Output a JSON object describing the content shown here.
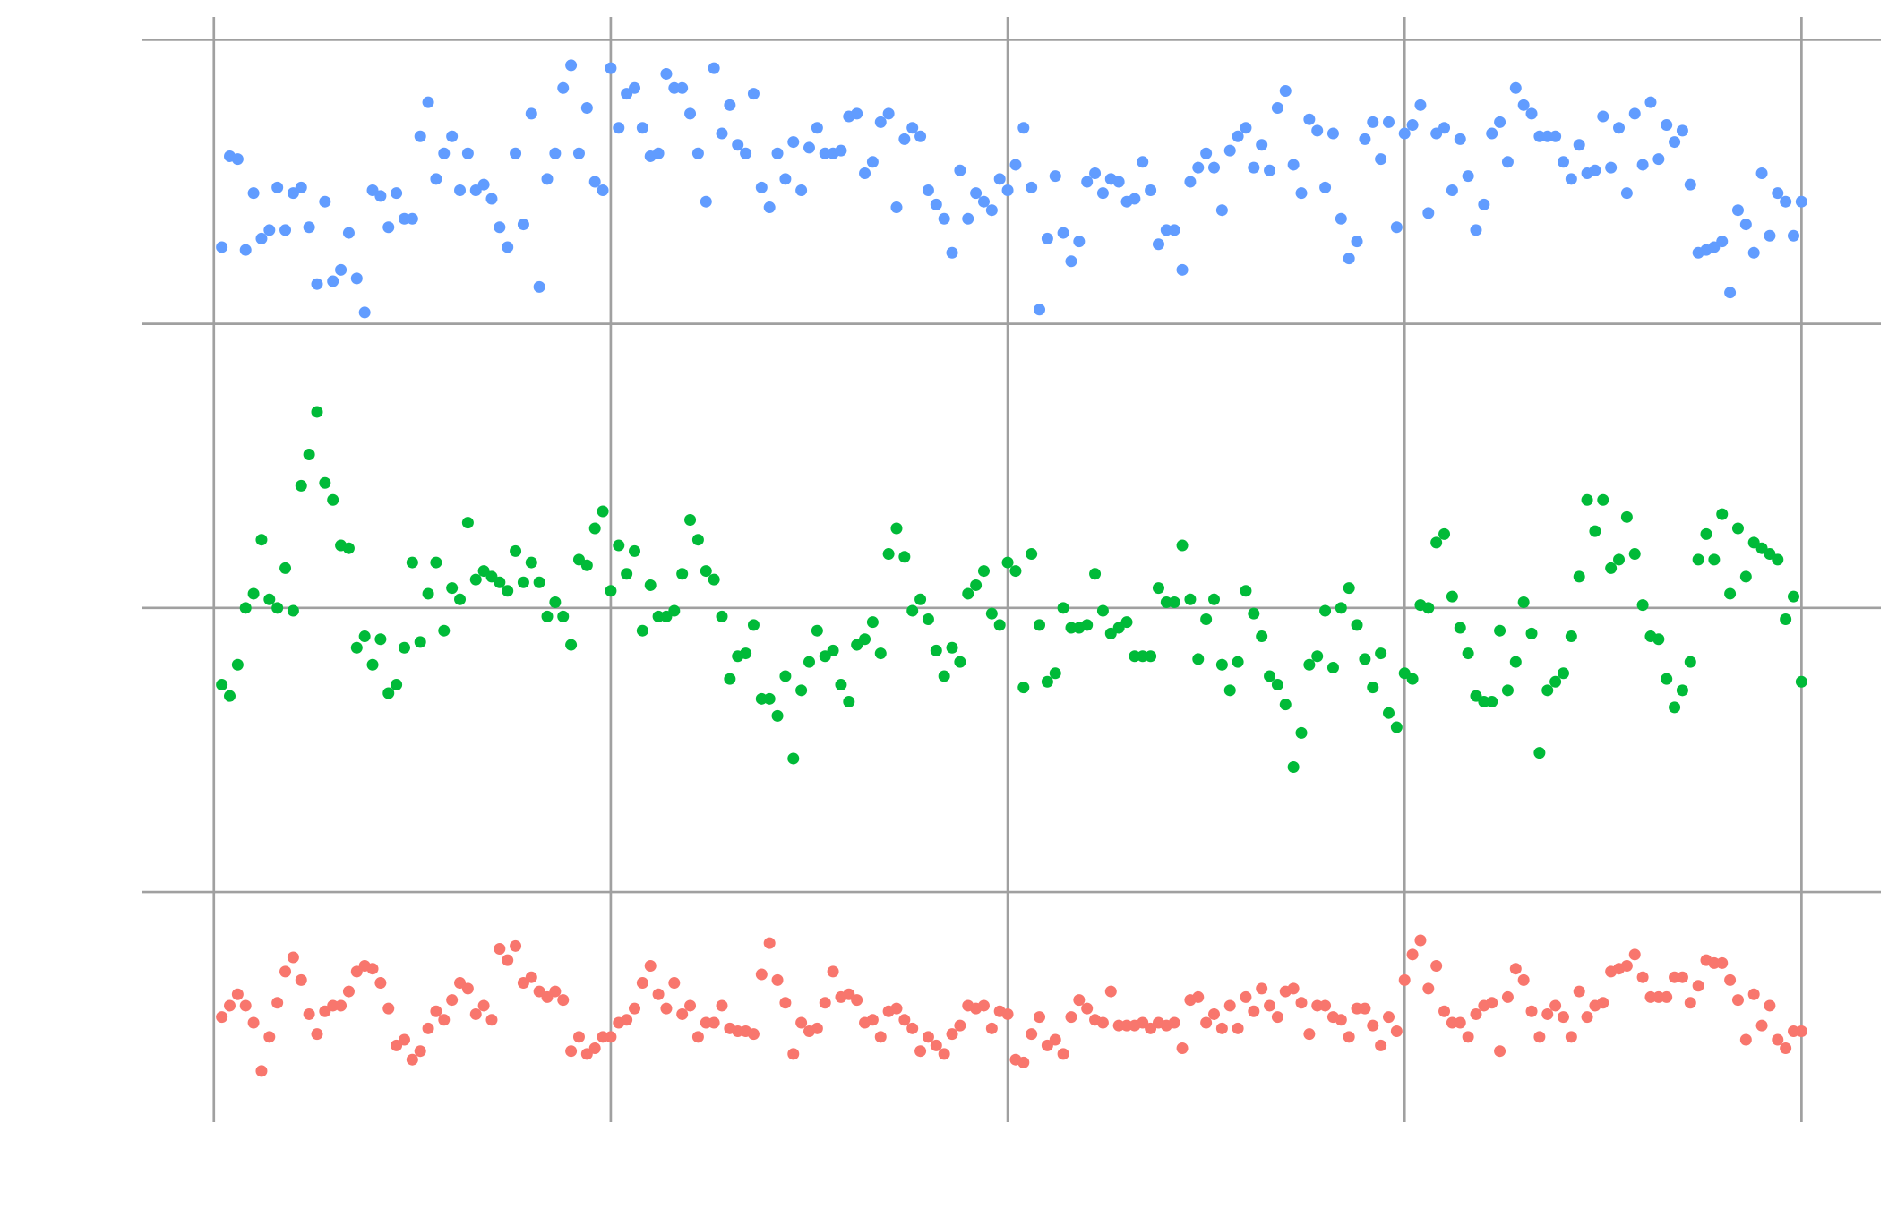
{
  "chart_data": {
    "type": "scatter",
    "x": [
      1,
      2,
      3,
      4,
      5,
      6,
      7,
      8,
      9,
      10,
      11,
      12,
      13,
      14,
      15,
      16,
      17,
      18,
      19,
      20,
      21,
      22,
      23,
      24,
      25,
      26,
      27,
      28,
      29,
      30,
      31,
      32,
      33,
      34,
      35,
      36,
      37,
      38,
      39,
      40,
      41,
      42,
      43,
      44,
      45,
      46,
      47,
      48,
      49,
      50,
      51,
      52,
      53,
      54,
      55,
      56,
      57,
      58,
      59,
      60,
      61,
      62,
      63,
      64,
      65,
      66,
      67,
      68,
      69,
      70,
      71,
      72,
      73,
      74,
      75,
      76,
      77,
      78,
      79,
      80,
      81,
      82,
      83,
      84,
      85,
      86,
      87,
      88,
      89,
      90,
      91,
      92,
      93,
      94,
      95,
      96,
      97,
      98,
      99,
      100,
      101,
      102,
      103,
      104,
      105,
      106,
      107,
      108,
      109,
      110,
      111,
      112,
      113,
      114,
      115,
      116,
      117,
      118,
      119,
      120,
      121,
      122,
      123,
      124,
      125,
      126,
      127,
      128,
      129,
      130,
      131,
      132,
      133,
      134,
      135,
      136,
      137,
      138,
      139,
      140,
      141,
      142,
      143,
      144,
      145,
      146,
      147,
      148,
      149,
      150,
      151,
      152,
      153,
      154,
      155,
      156,
      157,
      158,
      159,
      160,
      161,
      162,
      163,
      164,
      165,
      166,
      167,
      168,
      169,
      170,
      171,
      172,
      173,
      174,
      175,
      176,
      177,
      178,
      179,
      180,
      181,
      182,
      183,
      184,
      185,
      186,
      187,
      188,
      189,
      190,
      191,
      192,
      193,
      194,
      195,
      196,
      197,
      198,
      199,
      200
    ],
    "series": [
      {
        "color": "#619CFF",
        "values": [
          2.27,
          2.59,
          2.58,
          2.26,
          2.46,
          2.3,
          2.33,
          2.48,
          2.33,
          2.46,
          2.48,
          2.34,
          2.14,
          2.43,
          2.15,
          2.19,
          2.32,
          2.16,
          2.04,
          2.47,
          2.45,
          2.34,
          2.46,
          2.37,
          2.37,
          2.66,
          2.78,
          2.51,
          2.6,
          2.66,
          2.47,
          2.6,
          2.47,
          2.49,
          2.44,
          2.34,
          2.27,
          2.6,
          2.35,
          2.74,
          2.13,
          2.51,
          2.6,
          2.83,
          2.91,
          2.6,
          2.76,
          2.5,
          2.47,
          2.9,
          2.69,
          2.81,
          2.83,
          2.69,
          2.59,
          2.6,
          2.88,
          2.83,
          2.83,
          2.74,
          2.6,
          2.43,
          2.9,
          2.67,
          2.77,
          2.63,
          2.6,
          2.81,
          2.48,
          2.41,
          2.6,
          2.51,
          2.64,
          2.47,
          2.62,
          2.69,
          2.6,
          2.6,
          2.61,
          2.73,
          2.74,
          2.53,
          2.57,
          2.71,
          2.74,
          2.41,
          2.65,
          2.69,
          2.66,
          2.47,
          2.42,
          2.37,
          2.25,
          2.54,
          2.37,
          2.46,
          2.43,
          2.4,
          2.51,
          2.47,
          2.56,
          2.69,
          2.48,
          2.05,
          2.3,
          2.52,
          2.32,
          2.22,
          2.29,
          2.5,
          2.53,
          2.46,
          2.51,
          2.5,
          2.43,
          2.44,
          2.57,
          2.47,
          2.28,
          2.33,
          2.33,
          2.19,
          2.5,
          2.55,
          2.6,
          2.55,
          2.4,
          2.61,
          2.66,
          2.69,
          2.55,
          2.63,
          2.54,
          2.76,
          2.82,
          2.56,
          2.46,
          2.72,
          2.68,
          2.48,
          2.67,
          2.37,
          2.23,
          2.29,
          2.65,
          2.71,
          2.58,
          2.71,
          2.34,
          2.67,
          2.7,
          2.77,
          2.39,
          2.67,
          2.69,
          2.47,
          2.65,
          2.52,
          2.33,
          2.42,
          2.67,
          2.71,
          2.57,
          2.83,
          2.77,
          2.74,
          2.66,
          2.66,
          2.66,
          2.57,
          2.51,
          2.63,
          2.53,
          2.54,
          2.73,
          2.55,
          2.69,
          2.46,
          2.74,
          2.56,
          2.78,
          2.58,
          2.7,
          2.64,
          2.68,
          2.49,
          2.25,
          2.26,
          2.27,
          2.29,
          2.11,
          2.4,
          2.35,
          2.25,
          2.53,
          2.31,
          2.46,
          2.43,
          2.31,
          2.43
        ]
      },
      {
        "color": "#00BA38",
        "values": [
          0.73,
          0.69,
          0.8,
          1.0,
          1.05,
          1.24,
          1.03,
          1.0,
          1.14,
          0.99,
          1.43,
          1.54,
          1.69,
          1.44,
          1.38,
          1.22,
          1.21,
          0.86,
          0.9,
          0.8,
          0.89,
          0.7,
          0.73,
          0.86,
          1.16,
          0.88,
          1.05,
          1.16,
          0.92,
          1.07,
          1.03,
          1.3,
          1.1,
          1.13,
          1.11,
          1.09,
          1.06,
          1.2,
          1.09,
          1.16,
          1.09,
          0.97,
          1.02,
          0.97,
          0.87,
          1.17,
          1.15,
          1.28,
          1.34,
          1.06,
          1.22,
          1.12,
          1.2,
          0.92,
          1.08,
          0.97,
          0.97,
          0.99,
          1.12,
          1.31,
          1.24,
          1.13,
          1.1,
          0.97,
          0.75,
          0.83,
          0.84,
          0.94,
          0.68,
          0.68,
          0.62,
          0.76,
          0.47,
          0.71,
          0.81,
          0.92,
          0.83,
          0.85,
          0.73,
          0.67,
          0.87,
          0.89,
          0.95,
          0.84,
          1.19,
          1.28,
          1.18,
          0.99,
          1.03,
          0.96,
          0.85,
          0.76,
          0.86,
          0.81,
          1.05,
          1.08,
          1.13,
          0.98,
          0.94,
          1.16,
          1.13,
          0.72,
          1.19,
          0.94,
          0.74,
          0.77,
          1.0,
          0.93,
          0.93,
          0.94,
          1.12,
          0.99,
          0.91,
          0.93,
          0.95,
          0.83,
          0.83,
          0.83,
          1.07,
          1.02,
          1.02,
          1.22,
          1.03,
          0.82,
          0.96,
          1.03,
          0.8,
          0.71,
          0.81,
          1.06,
          0.98,
          0.9,
          0.76,
          0.73,
          0.66,
          0.44,
          0.56,
          0.8,
          0.83,
          0.99,
          0.79,
          1.0,
          1.07,
          0.94,
          0.82,
          0.72,
          0.84,
          0.63,
          0.58,
          0.77,
          0.75,
          1.01,
          1.0,
          1.23,
          1.26,
          1.04,
          0.93,
          0.84,
          0.69,
          0.67,
          0.67,
          0.92,
          0.71,
          0.81,
          1.02,
          0.91,
          0.49,
          0.71,
          0.74,
          0.77,
          0.9,
          1.11,
          1.38,
          1.27,
          1.38,
          1.14,
          1.17,
          1.32,
          1.19,
          1.01,
          0.9,
          0.89,
          0.75,
          0.65,
          0.71,
          0.81,
          1.17,
          1.26,
          1.17,
          1.33,
          1.05,
          1.28,
          1.11,
          1.23,
          1.21,
          1.19,
          1.17,
          0.96,
          1.04,
          0.74
        ]
      },
      {
        "color": "#F8766D",
        "values": [
          -0.44,
          -0.4,
          -0.36,
          -0.4,
          -0.46,
          -0.63,
          -0.51,
          -0.39,
          -0.28,
          -0.23,
          -0.31,
          -0.43,
          -0.5,
          -0.42,
          -0.4,
          -0.4,
          -0.35,
          -0.28,
          -0.26,
          -0.27,
          -0.32,
          -0.41,
          -0.54,
          -0.52,
          -0.59,
          -0.56,
          -0.48,
          -0.42,
          -0.45,
          -0.38,
          -0.32,
          -0.34,
          -0.43,
          -0.4,
          -0.45,
          -0.2,
          -0.24,
          -0.19,
          -0.32,
          -0.3,
          -0.35,
          -0.37,
          -0.35,
          -0.38,
          -0.56,
          -0.51,
          -0.57,
          -0.55,
          -0.51,
          -0.51,
          -0.46,
          -0.45,
          -0.41,
          -0.32,
          -0.26,
          -0.36,
          -0.41,
          -0.32,
          -0.43,
          -0.4,
          -0.51,
          -0.46,
          -0.46,
          -0.4,
          -0.48,
          -0.49,
          -0.49,
          -0.5,
          -0.29,
          -0.18,
          -0.31,
          -0.39,
          -0.57,
          -0.46,
          -0.49,
          -0.48,
          -0.39,
          -0.28,
          -0.37,
          -0.36,
          -0.38,
          -0.46,
          -0.45,
          -0.51,
          -0.42,
          -0.41,
          -0.45,
          -0.48,
          -0.56,
          -0.51,
          -0.54,
          -0.57,
          -0.5,
          -0.47,
          -0.4,
          -0.41,
          -0.4,
          -0.48,
          -0.42,
          -0.43,
          -0.59,
          -0.6,
          -0.5,
          -0.44,
          -0.54,
          -0.52,
          -0.57,
          -0.44,
          -0.38,
          -0.41,
          -0.45,
          -0.46,
          -0.35,
          -0.47,
          -0.47,
          -0.47,
          -0.46,
          -0.48,
          -0.46,
          -0.47,
          -0.46,
          -0.55,
          -0.38,
          -0.37,
          -0.46,
          -0.43,
          -0.48,
          -0.4,
          -0.48,
          -0.37,
          -0.42,
          -0.34,
          -0.4,
          -0.44,
          -0.35,
          -0.34,
          -0.39,
          -0.5,
          -0.4,
          -0.4,
          -0.44,
          -0.45,
          -0.51,
          -0.41,
          -0.41,
          -0.47,
          -0.54,
          -0.44,
          -0.49,
          -0.31,
          -0.22,
          -0.17,
          -0.34,
          -0.26,
          -0.42,
          -0.46,
          -0.46,
          -0.51,
          -0.43,
          -0.4,
          -0.39,
          -0.56,
          -0.37,
          -0.27,
          -0.31,
          -0.42,
          -0.51,
          -0.43,
          -0.4,
          -0.44,
          -0.51,
          -0.35,
          -0.44,
          -0.4,
          -0.39,
          -0.28,
          -0.27,
          -0.26,
          -0.22,
          -0.3,
          -0.37,
          -0.37,
          -0.37,
          -0.3,
          -0.3,
          -0.39,
          -0.33,
          -0.24,
          -0.25,
          -0.25,
          -0.31,
          -0.38,
          -0.52,
          -0.36,
          -0.47,
          -0.4,
          -0.52,
          -0.55,
          -0.49,
          -0.49
        ]
      }
    ],
    "xlim": [
      -9,
      210
    ],
    "ylim": [
      -0.81,
      3.08
    ],
    "xticks": [
      0,
      50,
      100,
      150,
      200
    ],
    "yticks": [
      0,
      1,
      2,
      3
    ],
    "grid": true,
    "tick_labels": false,
    "grid_color": "#a0a0a0"
  }
}
